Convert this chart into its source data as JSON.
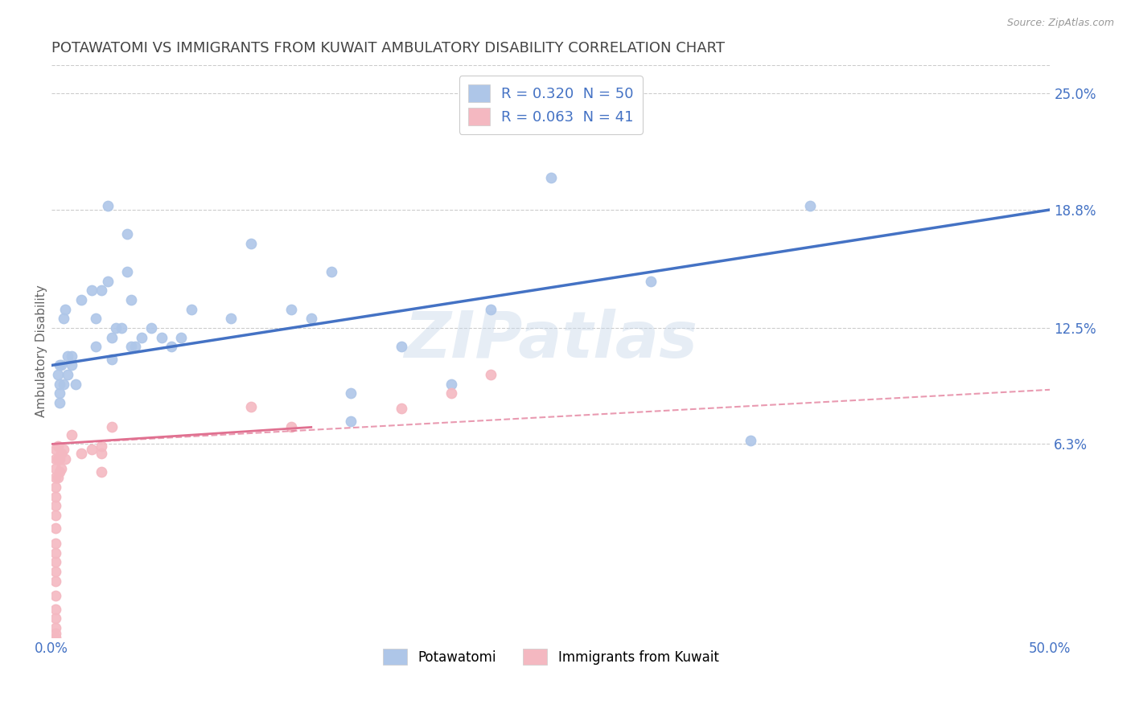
{
  "title": "POTAWATOMI VS IMMIGRANTS FROM KUWAIT AMBULATORY DISABILITY CORRELATION CHART",
  "source_text": "Source: ZipAtlas.com",
  "ylabel": "Ambulatory Disability",
  "watermark": "ZIPatlas",
  "legend_entries": [
    {
      "label": "R = 0.320  N = 50",
      "color": "#aec6e8"
    },
    {
      "label": "R = 0.063  N = 41",
      "color": "#f4b8c1"
    }
  ],
  "legend_labels": [
    "Potawatomi",
    "Immigrants from Kuwait"
  ],
  "xlim": [
    0.0,
    0.5
  ],
  "ylim": [
    -0.04,
    0.265
  ],
  "xticks": [
    0.0,
    0.5
  ],
  "xticklabels": [
    "0.0%",
    "50.0%"
  ],
  "ytick_positions": [
    0.063,
    0.125,
    0.188,
    0.25
  ],
  "ytick_labels": [
    "6.3%",
    "12.5%",
    "18.8%",
    "25.0%"
  ],
  "grid_color": "#cccccc",
  "background_color": "#ffffff",
  "title_color": "#444444",
  "axis_label_color": "#666666",
  "tick_label_color": "#4472c4",
  "scatter_blue": {
    "x": [
      0.028,
      0.022,
      0.01,
      0.012,
      0.008,
      0.005,
      0.006,
      0.004,
      0.004,
      0.004,
      0.004,
      0.003,
      0.006,
      0.007,
      0.008,
      0.01,
      0.015,
      0.02,
      0.022,
      0.025,
      0.03,
      0.032,
      0.038,
      0.04,
      0.042,
      0.045,
      0.05,
      0.055,
      0.06,
      0.065,
      0.07,
      0.09,
      0.1,
      0.12,
      0.13,
      0.14,
      0.15,
      0.175,
      0.2,
      0.22,
      0.25,
      0.3,
      0.35,
      0.38,
      0.028,
      0.038,
      0.03,
      0.035,
      0.04,
      0.15
    ],
    "y": [
      0.15,
      0.115,
      0.11,
      0.095,
      0.1,
      0.105,
      0.095,
      0.105,
      0.09,
      0.095,
      0.085,
      0.1,
      0.13,
      0.135,
      0.11,
      0.105,
      0.14,
      0.145,
      0.13,
      0.145,
      0.12,
      0.125,
      0.155,
      0.14,
      0.115,
      0.12,
      0.125,
      0.12,
      0.115,
      0.12,
      0.135,
      0.13,
      0.17,
      0.135,
      0.13,
      0.155,
      0.075,
      0.115,
      0.095,
      0.135,
      0.205,
      0.15,
      0.065,
      0.19,
      0.19,
      0.175,
      0.108,
      0.125,
      0.115,
      0.09
    ]
  },
  "scatter_pink": {
    "x": [
      0.002,
      0.002,
      0.002,
      0.002,
      0.002,
      0.002,
      0.002,
      0.002,
      0.002,
      0.002,
      0.002,
      0.002,
      0.002,
      0.002,
      0.002,
      0.002,
      0.002,
      0.002,
      0.002,
      0.002,
      0.003,
      0.003,
      0.003,
      0.004,
      0.004,
      0.005,
      0.005,
      0.006,
      0.007,
      0.01,
      0.015,
      0.02,
      0.025,
      0.03,
      0.025,
      0.025,
      0.1,
      0.12,
      0.175,
      0.2,
      0.22
    ],
    "y": [
      0.06,
      0.055,
      0.05,
      0.045,
      0.04,
      0.035,
      0.03,
      0.025,
      0.018,
      0.01,
      0.005,
      0.0,
      -0.005,
      -0.01,
      -0.018,
      -0.025,
      -0.03,
      -0.035,
      -0.038,
      -0.04,
      0.062,
      0.055,
      0.045,
      0.055,
      0.048,
      0.058,
      0.05,
      0.06,
      0.055,
      0.068,
      0.058,
      0.06,
      0.062,
      0.072,
      0.058,
      0.048,
      0.083,
      0.072,
      0.082,
      0.09,
      0.1
    ]
  },
  "trendline_blue": {
    "x": [
      0.0,
      0.5
    ],
    "y": [
      0.105,
      0.188
    ]
  },
  "trendline_pink_solid": {
    "x": [
      0.0,
      0.13
    ],
    "y": [
      0.063,
      0.072
    ]
  },
  "trendline_pink_dashed": {
    "x": [
      0.0,
      0.5
    ],
    "y": [
      0.063,
      0.092
    ]
  },
  "dot_color_blue": "#aec6e8",
  "dot_color_pink": "#f4b8c1",
  "line_color_blue": "#4472c4",
  "line_color_pink": "#e07090",
  "dot_size": 80,
  "dot_alpha": 0.9,
  "title_fontsize": 13,
  "axis_label_fontsize": 11,
  "tick_fontsize": 12
}
